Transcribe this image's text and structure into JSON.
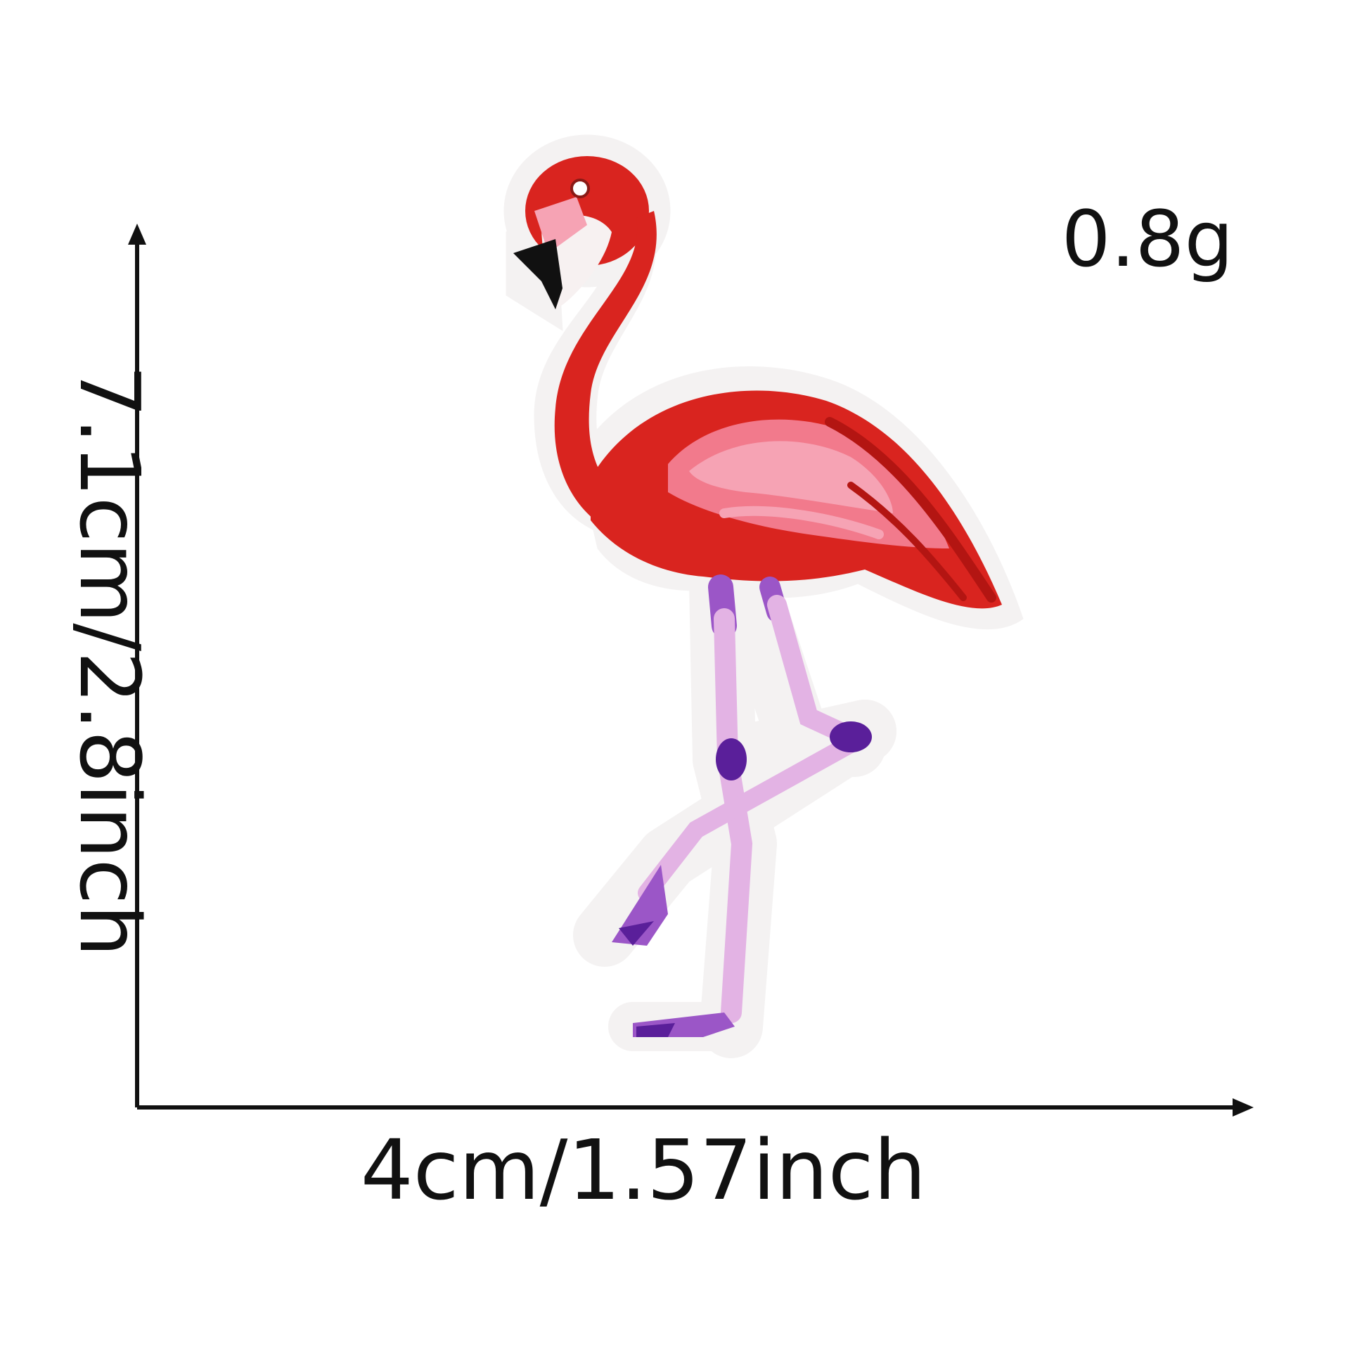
{
  "product": {
    "name_icon": "flamingo-embroidered-patch"
  },
  "weight": {
    "label": "0.8g"
  },
  "dimensions": {
    "height_label": "7.1cm/2.8inch",
    "width_label": "4cm/1.57inch"
  },
  "colors": {
    "background": "#ffffff",
    "dimension_line": "#111111",
    "patch_border": "#f4f2f2",
    "body_red": "#d9241f",
    "wing_pink": "#f27a8c",
    "wing_light_pink": "#f6a3b4",
    "leg_lilac": "#e3b3e4",
    "leg_purple": "#9b56c7",
    "knee_dark_purple": "#5a1f9a",
    "beak_black": "#111111"
  }
}
